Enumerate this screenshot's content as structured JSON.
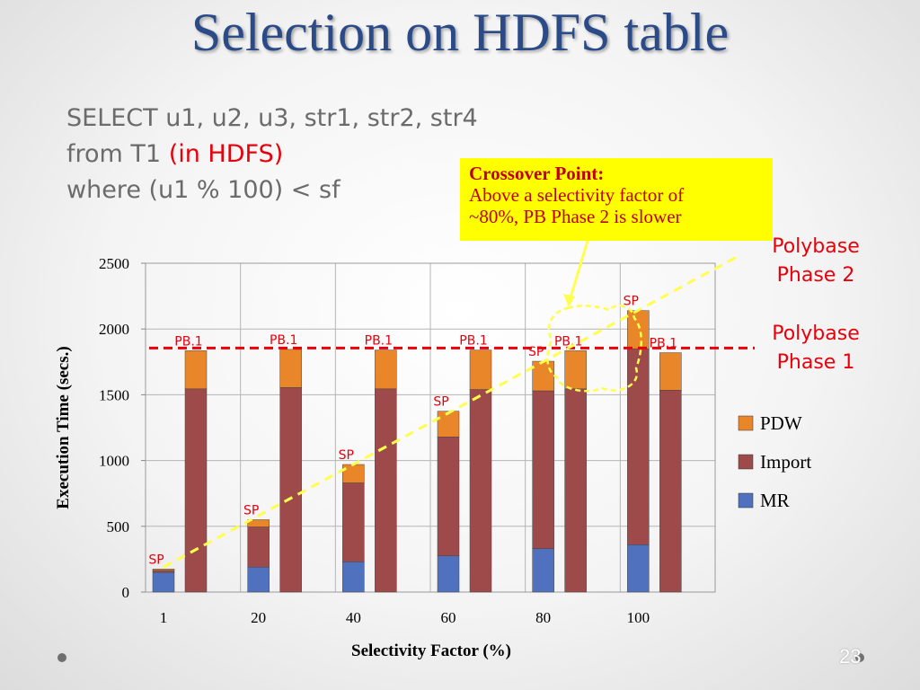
{
  "slide": {
    "title": "Selection on HDFS table",
    "query_line1": "SELECT u1, u2, u3, str1, str2, str4",
    "query_line2_a": "from T1",
    "query_line2_b": "(in HDFS)",
    "query_line3": "where (u1 % 100) < sf",
    "callout_title": "Crossover Point:",
    "callout_line1": "Above a selectivity factor of",
    "callout_line2": "~80%, PB Phase 2 is slower",
    "phase2_line1": "Polybase",
    "phase2_line2": "Phase 2",
    "phase1_line1": "Polybase",
    "phase1_line2": "Phase 1",
    "page_number": "23"
  },
  "colors": {
    "title": "#2b4a88",
    "mr": "#4f71be",
    "import": "#9e4a4a",
    "pdw": "#e9862a",
    "label_red": "#e8000b",
    "callout_bg": "#ffff00",
    "dashed_yellow": "#ffff4d"
  },
  "chart_data": {
    "type": "bar",
    "stacked": true,
    "xlabel": "Selectivity Factor (%)",
    "ylabel": "Execution Time (secs.)",
    "ylim": [
      0,
      2500
    ],
    "yticks": [
      0,
      500,
      1000,
      1500,
      2000,
      2500
    ],
    "grid": true,
    "legend_position": "right",
    "categories": [
      "1",
      "20",
      "40",
      "60",
      "80",
      "100"
    ],
    "bar_labels": [
      "SP",
      "PB.1"
    ],
    "series": [
      {
        "name": "MR",
        "color": "#4f71be",
        "values": [
          [
            150,
            0
          ],
          [
            190,
            0
          ],
          [
            230,
            0
          ],
          [
            275,
            0
          ],
          [
            330,
            0
          ],
          [
            360,
            0
          ]
        ]
      },
      {
        "name": "Import",
        "color": "#9e4a4a",
        "values": [
          [
            15,
            1545
          ],
          [
            305,
            1555
          ],
          [
            600,
            1545
          ],
          [
            905,
            1540
          ],
          [
            1200,
            1545
          ],
          [
            1490,
            1535
          ]
        ]
      },
      {
        "name": "PDW",
        "color": "#e9862a",
        "values": [
          [
            10,
            290
          ],
          [
            55,
            290
          ],
          [
            140,
            295
          ],
          [
            195,
            300
          ],
          [
            225,
            290
          ],
          [
            290,
            285
          ]
        ]
      }
    ],
    "legend": [
      "PDW",
      "Import",
      "MR"
    ],
    "reference_line": {
      "label": "Polybase Phase 1",
      "value": 1855
    },
    "trend_line": {
      "label": "Polybase Phase 2",
      "from": {
        "x": "1",
        "value": 190
      },
      "to": {
        "x": "100",
        "value": 2560
      }
    }
  }
}
